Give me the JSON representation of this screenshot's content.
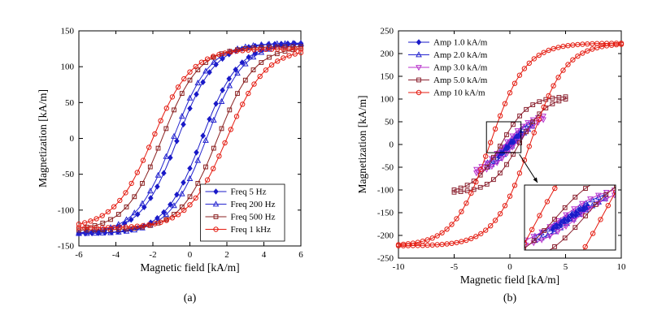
{
  "captions": {
    "a": "(a)",
    "b": "(b)"
  },
  "chart_data": [
    {
      "id": "a",
      "type": "line",
      "title": "",
      "xlabel": "Magnetic field [kA/m]",
      "ylabel": "Magnetization [kA/m]",
      "xlim": [
        -6,
        6
      ],
      "ylim": [
        -150,
        150
      ],
      "xticks": [
        -6,
        -4,
        -2,
        0,
        2,
        4,
        6
      ],
      "yticks": [
        -150,
        -100,
        -50,
        0,
        50,
        100,
        150
      ],
      "grid": false,
      "legend": {
        "location": "lower right",
        "border": true
      },
      "model": "hysteresis loop: M_branch(H) = saturation * tanh((H -/+ coercivity)/softness), H swept over +/- amplitude",
      "series": [
        {
          "name": "Freq 5 Hz",
          "slug": "freq-5hz",
          "color": "#1a1ac8",
          "marker": "diamond",
          "marker_filled": true,
          "amplitude": 6,
          "saturation": 133,
          "softness": 2.0,
          "coercivity": 0.65,
          "markers_per_branch": 34
        },
        {
          "name": "Freq 200 Hz",
          "slug": "freq-200hz",
          "color": "#2424cf",
          "marker": "triangle-up",
          "marker_filled": false,
          "amplitude": 6,
          "saturation": 133,
          "softness": 2.0,
          "coercivity": 0.9,
          "markers_per_branch": 28
        },
        {
          "name": "Freq 500 Hz",
          "slug": "freq-500hz",
          "color": "#8b2222",
          "marker": "square",
          "marker_filled": false,
          "amplitude": 6,
          "saturation": 128,
          "softness": 2.0,
          "coercivity": 1.5,
          "markers_per_branch": 28
        },
        {
          "name": "Freq 1 kHz",
          "slug": "freq-1khz",
          "color": "#e41b10",
          "marker": "circle",
          "marker_filled": false,
          "amplitude": 6,
          "saturation": 125,
          "softness": 2.1,
          "coercivity": 2.0,
          "markers_per_branch": 38
        }
      ]
    },
    {
      "id": "b",
      "type": "line",
      "title": "",
      "xlabel": "Magnetic field [kA/m]",
      "ylabel": "Magnetization [kA/m]",
      "xlim": [
        -10,
        10
      ],
      "ylim": [
        -250,
        250
      ],
      "xticks": [
        -10,
        -5,
        0,
        5,
        10
      ],
      "yticks": [
        -250,
        -200,
        -150,
        -100,
        -50,
        0,
        50,
        100,
        150,
        200,
        250
      ],
      "grid": false,
      "legend": {
        "location": "upper left",
        "border": false
      },
      "model": "hysteresis loop: M_branch(H) = saturation * tanh((H -/+ coercivity)/softness), H swept over +/- amplitude",
      "series": [
        {
          "name": "Amp 1.0 kA/m",
          "slug": "amp-1-0",
          "color": "#1a1ac8",
          "marker": "diamond",
          "marker_filled": true,
          "amplitude": 1,
          "saturation": 60,
          "softness": 2.5,
          "coercivity": 0.15,
          "markers_per_branch": 9
        },
        {
          "name": "Amp 2.0 kA/m",
          "slug": "amp-2-0",
          "color": "#2424cf",
          "marker": "triangle-up",
          "marker_filled": false,
          "amplitude": 2,
          "saturation": 68,
          "softness": 2.5,
          "coercivity": 0.3,
          "markers_per_branch": 11
        },
        {
          "name": "Amp 3.0 kA/m",
          "slug": "amp-3-0",
          "color": "#b833cc",
          "marker": "triangle-down",
          "marker_filled": false,
          "amplitude": 3,
          "saturation": 71,
          "softness": 2.5,
          "coercivity": 0.45,
          "markers_per_branch": 13
        },
        {
          "name": "Amp 5.0 kA/m",
          "slug": "amp-5-0",
          "color": "#8b2230",
          "marker": "square",
          "marker_filled": false,
          "amplitude": 5,
          "saturation": 107,
          "softness": 2.5,
          "coercivity": 0.8,
          "markers_per_branch": 17
        },
        {
          "name": "Amp 10 kA/m",
          "slug": "amp-10",
          "color": "#e41b10",
          "marker": "circle",
          "marker_filled": false,
          "amplitude": 10,
          "saturation": 223,
          "softness": 3.2,
          "coercivity": 1.8,
          "markers_per_branch": 46
        }
      ],
      "inset": {
        "zoom_box": {
          "x": [
            -2.1,
            1.0
          ],
          "y": [
            -18,
            50
          ]
        },
        "view": {
          "x": [
            -2.6,
            2.6
          ],
          "y": [
            -70,
            70
          ]
        }
      }
    }
  ]
}
